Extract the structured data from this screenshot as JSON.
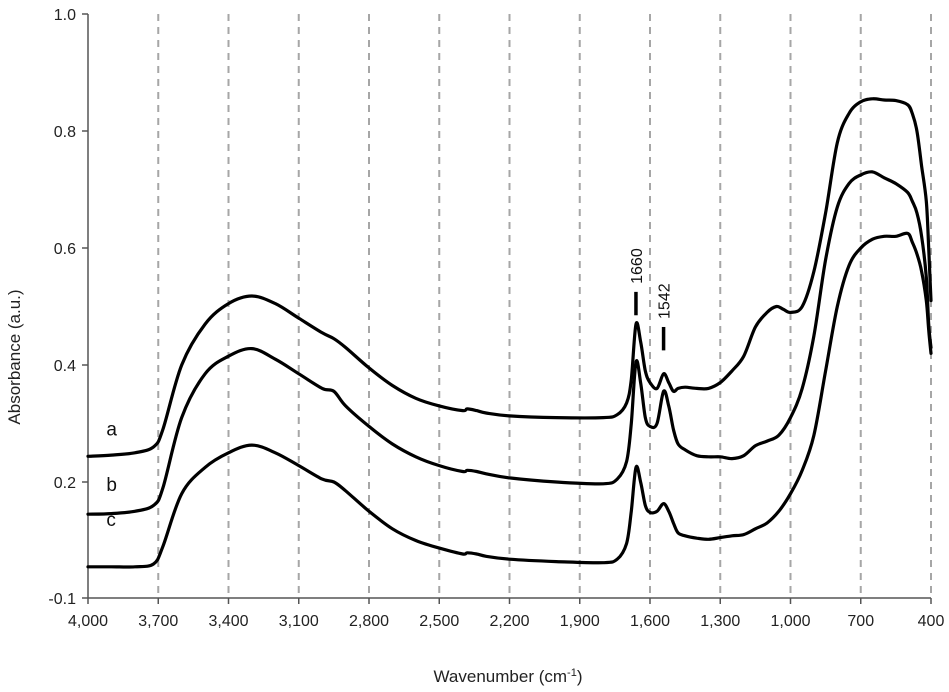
{
  "chart_data": {
    "type": "line",
    "title": "",
    "xlabel": "Wavenumber (cm",
    "xlabel_superscript": "-1",
    "xlabel_suffix": ")",
    "ylabel": "Absorbance (a.u.)",
    "xlim": [
      4000,
      400
    ],
    "x_reversed": true,
    "ylim": [
      -0.1,
      1.0
    ],
    "x_ticks": [
      4000,
      3700,
      3400,
      3100,
      2800,
      2500,
      2200,
      1900,
      1600,
      1300,
      1000,
      700,
      400
    ],
    "x_tick_labels": [
      "4,000",
      "3,700",
      "3,400",
      "3,100",
      "2,800",
      "2,500",
      "2,200",
      "1,900",
      "1,600",
      "1,300",
      "1,000",
      "700",
      "400"
    ],
    "y_ticks": [
      -0.1,
      0.2,
      0.4,
      0.6,
      0.8,
      1.0
    ],
    "y_tick_labels": [
      "-0.1",
      "0.2",
      "0.4",
      "0.6",
      "0.8",
      "1.0"
    ],
    "vertical_grid": "dashed",
    "legend": "none",
    "annotations": [
      {
        "text": "1660",
        "x": 1660,
        "marker_top": 0.525,
        "marker_bottom": 0.485
      },
      {
        "text": "1542",
        "x": 1542,
        "marker_top": 0.465,
        "marker_bottom": 0.425
      }
    ],
    "series": [
      {
        "name": "a",
        "label_x": 3900,
        "label_y": 0.29,
        "x": [
          4000,
          3900,
          3800,
          3720,
          3680,
          3600,
          3500,
          3400,
          3300,
          3200,
          3100,
          3000,
          2950,
          2900,
          2800,
          2700,
          2600,
          2500,
          2400,
          2380,
          2340,
          2300,
          2200,
          2000,
          1800,
          1740,
          1700,
          1680,
          1660,
          1640,
          1620,
          1600,
          1570,
          1542,
          1520,
          1500,
          1480,
          1450,
          1400,
          1350,
          1300,
          1250,
          1200,
          1150,
          1100,
          1060,
          1030,
          1000,
          950,
          900,
          850,
          800,
          750,
          700,
          650,
          600,
          550,
          500,
          480,
          460,
          440,
          420,
          410,
          400
        ],
        "y": [
          0.244,
          0.246,
          0.25,
          0.26,
          0.29,
          0.4,
          0.47,
          0.505,
          0.518,
          0.505,
          0.48,
          0.455,
          0.445,
          0.43,
          0.395,
          0.365,
          0.343,
          0.33,
          0.322,
          0.325,
          0.322,
          0.318,
          0.313,
          0.31,
          0.31,
          0.315,
          0.335,
          0.375,
          0.47,
          0.44,
          0.39,
          0.37,
          0.36,
          0.385,
          0.37,
          0.355,
          0.36,
          0.362,
          0.36,
          0.36,
          0.37,
          0.39,
          0.415,
          0.465,
          0.49,
          0.5,
          0.495,
          0.49,
          0.5,
          0.56,
          0.66,
          0.78,
          0.83,
          0.85,
          0.855,
          0.853,
          0.852,
          0.845,
          0.83,
          0.8,
          0.74,
          0.68,
          0.6,
          0.51
        ]
      },
      {
        "name": "b",
        "label_x": 3900,
        "label_y": 0.195,
        "x": [
          4000,
          3900,
          3800,
          3720,
          3680,
          3600,
          3500,
          3400,
          3300,
          3200,
          3100,
          3000,
          2950,
          2900,
          2800,
          2700,
          2600,
          2500,
          2400,
          2380,
          2340,
          2300,
          2200,
          2000,
          1800,
          1740,
          1700,
          1680,
          1660,
          1640,
          1620,
          1600,
          1570,
          1542,
          1520,
          1500,
          1480,
          1450,
          1400,
          1350,
          1300,
          1250,
          1200,
          1150,
          1100,
          1050,
          1000,
          950,
          900,
          850,
          800,
          750,
          700,
          650,
          600,
          550,
          500,
          480,
          460,
          440,
          420,
          410,
          400
        ],
        "y": [
          0.145,
          0.146,
          0.15,
          0.16,
          0.19,
          0.31,
          0.385,
          0.415,
          0.428,
          0.41,
          0.385,
          0.36,
          0.355,
          0.33,
          0.295,
          0.265,
          0.243,
          0.228,
          0.218,
          0.22,
          0.218,
          0.214,
          0.207,
          0.2,
          0.197,
          0.205,
          0.235,
          0.3,
          0.405,
          0.37,
          0.31,
          0.295,
          0.3,
          0.355,
          0.33,
          0.29,
          0.265,
          0.255,
          0.245,
          0.243,
          0.243,
          0.24,
          0.245,
          0.262,
          0.27,
          0.28,
          0.31,
          0.36,
          0.45,
          0.58,
          0.67,
          0.71,
          0.725,
          0.73,
          0.72,
          0.71,
          0.695,
          0.68,
          0.66,
          0.62,
          0.55,
          0.47,
          0.43
        ]
      },
      {
        "name": "c",
        "label_x": 3900,
        "label_y": 0.135,
        "x": [
          4000,
          3900,
          3800,
          3720,
          3680,
          3600,
          3500,
          3400,
          3300,
          3200,
          3100,
          3000,
          2950,
          2900,
          2800,
          2700,
          2600,
          2500,
          2400,
          2380,
          2340,
          2300,
          2200,
          2000,
          1800,
          1740,
          1700,
          1680,
          1660,
          1640,
          1620,
          1600,
          1570,
          1542,
          1520,
          1500,
          1480,
          1450,
          1400,
          1350,
          1300,
          1250,
          1200,
          1150,
          1100,
          1050,
          1000,
          950,
          900,
          850,
          800,
          750,
          700,
          650,
          600,
          550,
          500,
          480,
          460,
          440,
          420,
          410,
          400
        ],
        "y": [
          0.055,
          0.055,
          0.055,
          0.06,
          0.09,
          0.18,
          0.225,
          0.25,
          0.263,
          0.25,
          0.228,
          0.205,
          0.2,
          0.185,
          0.15,
          0.12,
          0.1,
          0.087,
          0.077,
          0.079,
          0.077,
          0.073,
          0.068,
          0.064,
          0.062,
          0.068,
          0.095,
          0.15,
          0.225,
          0.2,
          0.16,
          0.148,
          0.15,
          0.163,
          0.15,
          0.13,
          0.113,
          0.108,
          0.104,
          0.102,
          0.105,
          0.108,
          0.11,
          0.12,
          0.13,
          0.15,
          0.18,
          0.22,
          0.28,
          0.39,
          0.5,
          0.57,
          0.6,
          0.615,
          0.62,
          0.62,
          0.625,
          0.61,
          0.59,
          0.56,
          0.51,
          0.46,
          0.42
        ]
      }
    ]
  }
}
